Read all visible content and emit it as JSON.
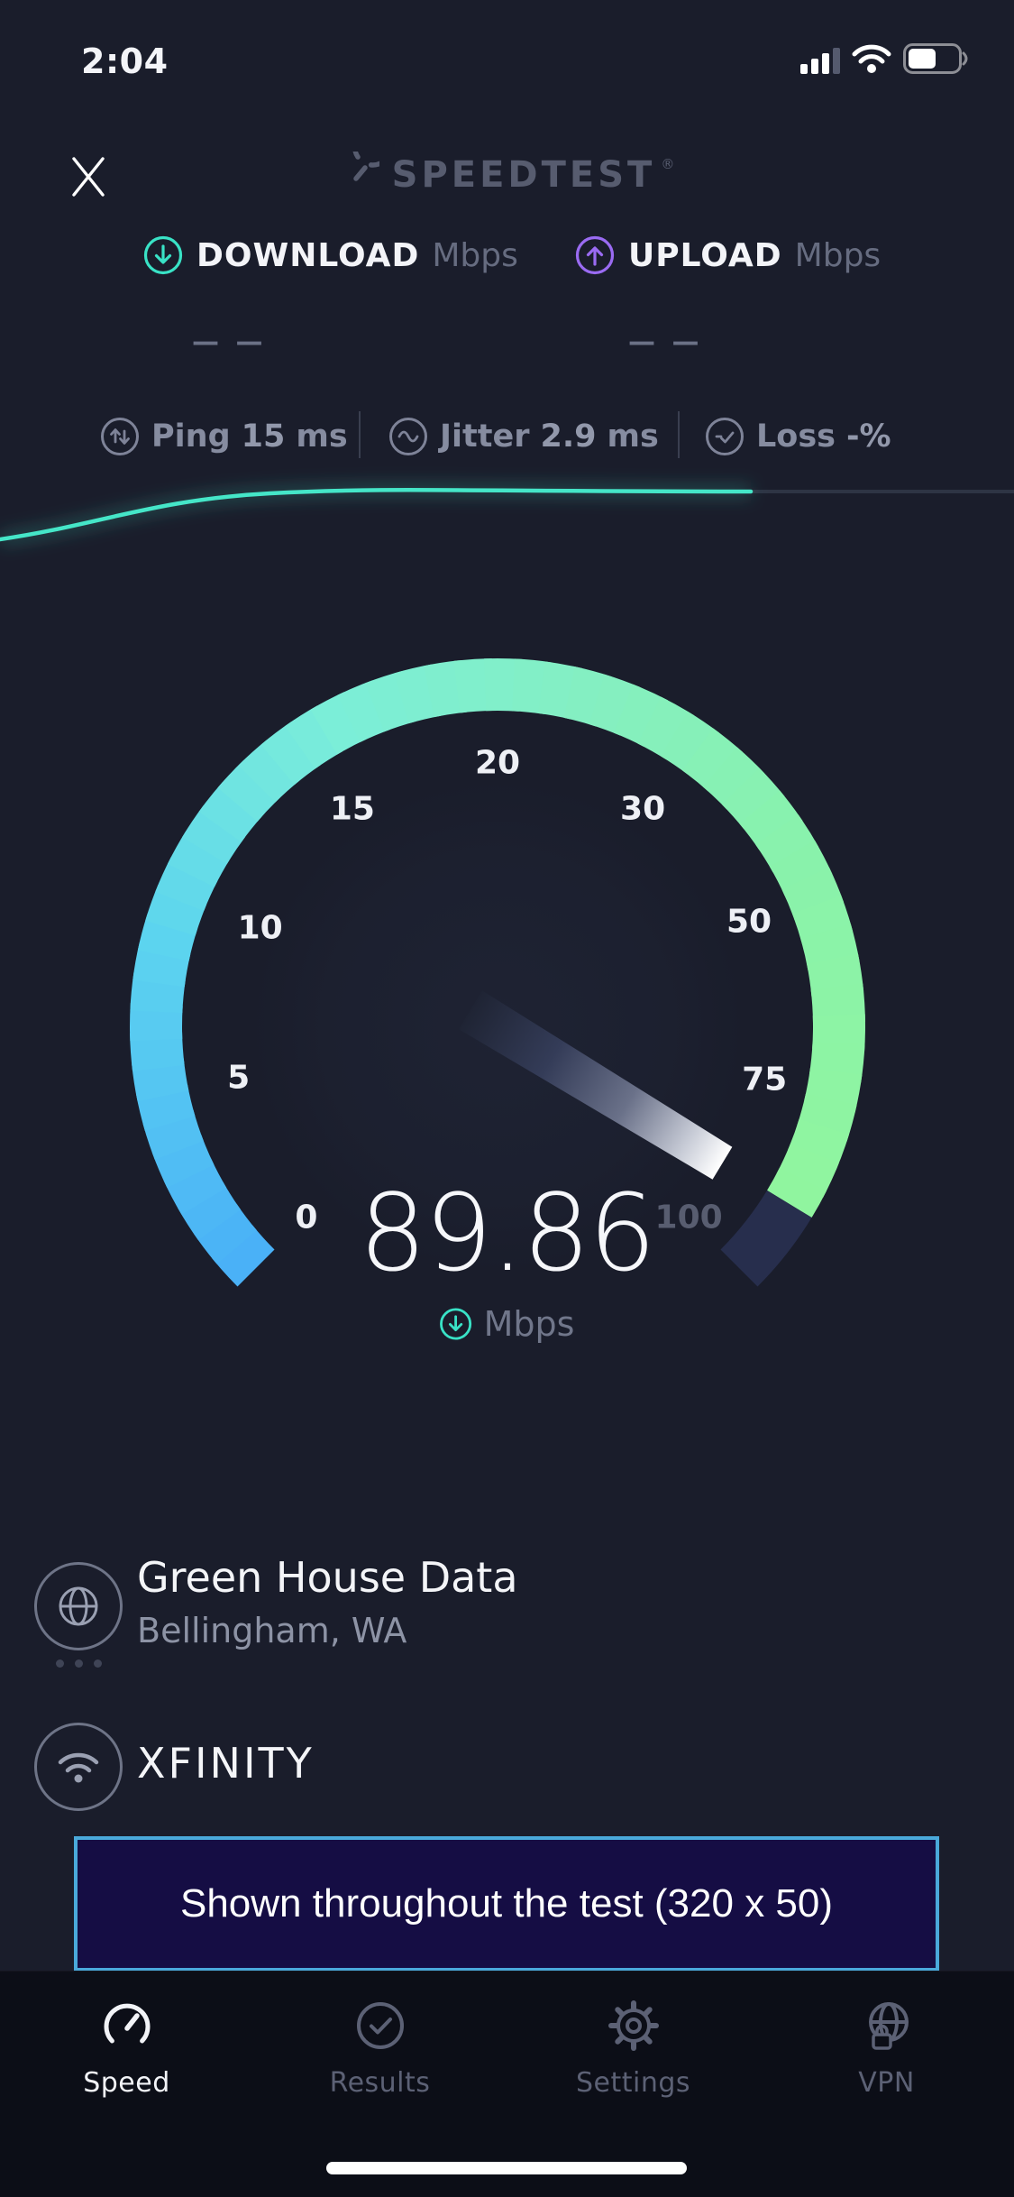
{
  "status_bar": {
    "time": "2:04"
  },
  "header": {
    "logo_text": "SPEEDTEST",
    "registered_mark": "®"
  },
  "metrics": {
    "download": {
      "label": "DOWNLOAD",
      "unit": "Mbps",
      "placeholder": "— —"
    },
    "upload": {
      "label": "UPLOAD",
      "unit": "Mbps",
      "placeholder": "— —"
    }
  },
  "stats": {
    "ping": {
      "label": "Ping",
      "value": "15",
      "unit": "ms"
    },
    "jitter": {
      "label": "Jitter",
      "value": "2.9",
      "unit": "ms"
    },
    "loss": {
      "label": "Loss",
      "value": "-%"
    }
  },
  "gauge": {
    "type": "radial-gauge",
    "ticks": [
      "0",
      "5",
      "10",
      "15",
      "20",
      "30",
      "50",
      "75",
      "100"
    ],
    "tick_values": [
      0,
      5,
      10,
      15,
      20,
      30,
      50,
      75,
      100
    ],
    "value": "89.86",
    "unit": "Mbps",
    "min": 0,
    "max": 100,
    "colors": {
      "arc_blue": "#49aff7",
      "arc_teal": "#7beed8",
      "arc_green": "#92f69b",
      "arc_remainder": "#272e4d"
    }
  },
  "progress_line": {
    "color": "#45e6c8",
    "track_color": "#2e3444"
  },
  "server": {
    "name": "Green House Data",
    "location": "Bellingham, WA"
  },
  "isp": {
    "name": "XFINITY"
  },
  "ad_banner": {
    "text": "Shown throughout the test (320 x 50)"
  },
  "tab_bar": {
    "active": "Speed",
    "items": [
      {
        "label": "Speed"
      },
      {
        "label": "Results"
      },
      {
        "label": "Settings"
      },
      {
        "label": "VPN"
      }
    ]
  },
  "accent_colors": {
    "download": "#39e2c6",
    "upload": "#9a6bf2",
    "ad_border": "#4aa9db"
  }
}
